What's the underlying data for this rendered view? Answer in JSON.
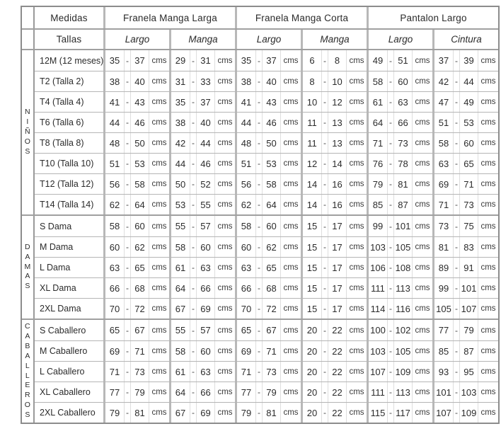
{
  "table": {
    "measure_header": "Medidas",
    "size_header": "Tallas",
    "unit": "cms",
    "dash": "-",
    "column_groups": [
      {
        "label": "Franela Manga Larga",
        "subcolumns": [
          "Largo",
          "Manga"
        ]
      },
      {
        "label": "Franela Manga Corta",
        "subcolumns": [
          "Largo",
          "Manga"
        ]
      },
      {
        "label": "Pantalon Largo",
        "subcolumns": [
          "Largo",
          "Cintura"
        ]
      }
    ],
    "sections": [
      {
        "name": "NIÑOS",
        "rows": [
          {
            "label": "12M (12 meses)",
            "ranges": [
              [
                35,
                37
              ],
              [
                29,
                31
              ],
              [
                35,
                37
              ],
              [
                6,
                8
              ],
              [
                49,
                51
              ],
              [
                37,
                39
              ]
            ]
          },
          {
            "label": "T2 (Talla 2)",
            "ranges": [
              [
                38,
                40
              ],
              [
                31,
                33
              ],
              [
                38,
                40
              ],
              [
                8,
                10
              ],
              [
                58,
                60
              ],
              [
                42,
                44
              ]
            ]
          },
          {
            "label": "T4 (Talla 4)",
            "ranges": [
              [
                41,
                43
              ],
              [
                35,
                37
              ],
              [
                41,
                43
              ],
              [
                10,
                12
              ],
              [
                61,
                63
              ],
              [
                47,
                49
              ]
            ]
          },
          {
            "label": "T6 (Talla 6)",
            "ranges": [
              [
                44,
                46
              ],
              [
                38,
                40
              ],
              [
                44,
                46
              ],
              [
                11,
                13
              ],
              [
                64,
                66
              ],
              [
                51,
                53
              ]
            ]
          },
          {
            "label": "T8 (Talla 8)",
            "ranges": [
              [
                48,
                50
              ],
              [
                42,
                44
              ],
              [
                48,
                50
              ],
              [
                11,
                13
              ],
              [
                71,
                73
              ],
              [
                58,
                60
              ]
            ]
          },
          {
            "label": "T10 (Talla 10)",
            "ranges": [
              [
                51,
                53
              ],
              [
                44,
                46
              ],
              [
                51,
                53
              ],
              [
                12,
                14
              ],
              [
                76,
                78
              ],
              [
                63,
                65
              ]
            ]
          },
          {
            "label": "T12 (Talla 12)",
            "ranges": [
              [
                56,
                58
              ],
              [
                50,
                52
              ],
              [
                56,
                58
              ],
              [
                14,
                16
              ],
              [
                79,
                81
              ],
              [
                69,
                71
              ]
            ]
          },
          {
            "label": "T14 (Talla 14)",
            "ranges": [
              [
                62,
                64
              ],
              [
                53,
                55
              ],
              [
                62,
                64
              ],
              [
                14,
                16
              ],
              [
                85,
                87
              ],
              [
                71,
                73
              ]
            ]
          }
        ]
      },
      {
        "name": "DAMAS",
        "rows": [
          {
            "label": "S Dama",
            "ranges": [
              [
                58,
                60
              ],
              [
                55,
                57
              ],
              [
                58,
                60
              ],
              [
                15,
                17
              ],
              [
                99,
                101
              ],
              [
                73,
                75
              ]
            ]
          },
          {
            "label": "M Dama",
            "ranges": [
              [
                60,
                62
              ],
              [
                58,
                60
              ],
              [
                60,
                62
              ],
              [
                15,
                17
              ],
              [
                103,
                105
              ],
              [
                81,
                83
              ]
            ]
          },
          {
            "label": "L Dama",
            "ranges": [
              [
                63,
                65
              ],
              [
                61,
                63
              ],
              [
                63,
                65
              ],
              [
                15,
                17
              ],
              [
                106,
                108
              ],
              [
                89,
                91
              ]
            ]
          },
          {
            "label": "XL Dama",
            "ranges": [
              [
                66,
                68
              ],
              [
                64,
                66
              ],
              [
                66,
                68
              ],
              [
                15,
                17
              ],
              [
                111,
                113
              ],
              [
                99,
                101
              ]
            ]
          },
          {
            "label": "2XL Dama",
            "ranges": [
              [
                70,
                72
              ],
              [
                67,
                69
              ],
              [
                70,
                72
              ],
              [
                15,
                17
              ],
              [
                114,
                116
              ],
              [
                105,
                107
              ]
            ]
          }
        ]
      },
      {
        "name": "CABALLEROS",
        "rows": [
          {
            "label": "S Caballero",
            "ranges": [
              [
                65,
                67
              ],
              [
                55,
                57
              ],
              [
                65,
                67
              ],
              [
                20,
                22
              ],
              [
                100,
                102
              ],
              [
                77,
                79
              ]
            ]
          },
          {
            "label": "M Caballero",
            "ranges": [
              [
                69,
                71
              ],
              [
                58,
                60
              ],
              [
                69,
                71
              ],
              [
                20,
                22
              ],
              [
                103,
                105
              ],
              [
                85,
                87
              ]
            ]
          },
          {
            "label": "L Caballero",
            "ranges": [
              [
                71,
                73
              ],
              [
                61,
                63
              ],
              [
                71,
                73
              ],
              [
                20,
                22
              ],
              [
                107,
                109
              ],
              [
                93,
                95
              ]
            ]
          },
          {
            "label": "XL Caballero",
            "ranges": [
              [
                77,
                79
              ],
              [
                64,
                66
              ],
              [
                77,
                79
              ],
              [
                20,
                22
              ],
              [
                111,
                113
              ],
              [
                101,
                103
              ]
            ]
          },
          {
            "label": "2XL Caballero",
            "ranges": [
              [
                79,
                81
              ],
              [
                67,
                69
              ],
              [
                79,
                81
              ],
              [
                20,
                22
              ],
              [
                115,
                117
              ],
              [
                107,
                109
              ]
            ]
          }
        ]
      }
    ]
  }
}
